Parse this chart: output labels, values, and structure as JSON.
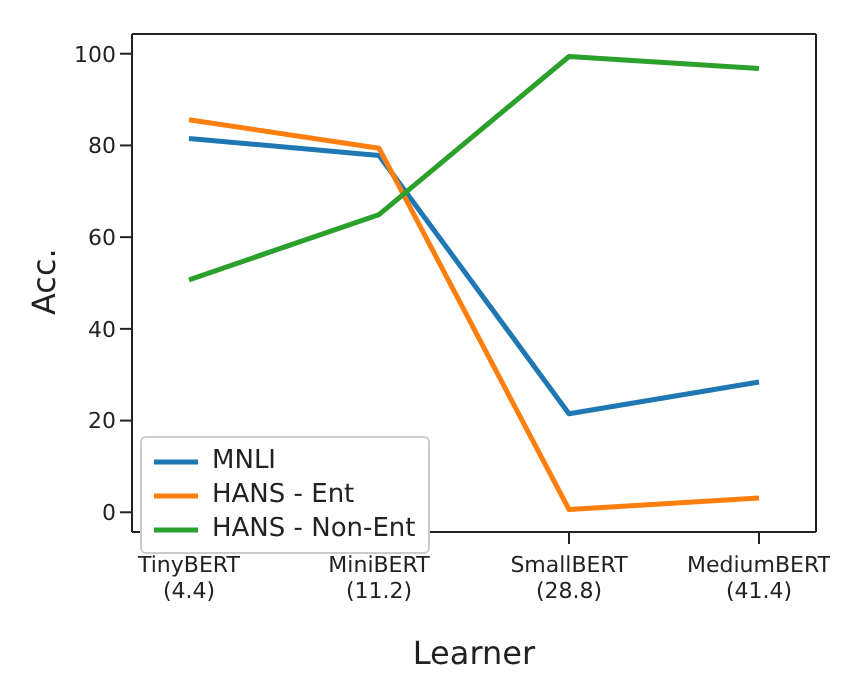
{
  "chart_data": {
    "type": "line",
    "xlabel": "Learner",
    "ylabel": "Acc.",
    "categories": [
      "TinyBERT\n(4.4)",
      "MiniBERT\n(11.2)",
      "SmallBERT\n(28.8)",
      "MediumBERT\n(41.4)"
    ],
    "series": [
      {
        "name": "MNLI",
        "color": "#1f77b4",
        "values": [
          81.5,
          77.8,
          21.5,
          28.4
        ]
      },
      {
        "name": "HANS - Ent",
        "color": "#ff7f0e",
        "values": [
          85.6,
          79.4,
          0.6,
          3.1
        ]
      },
      {
        "name": "HANS - Non-Ent",
        "color": "#2ca02c",
        "values": [
          50.7,
          64.9,
          99.4,
          96.8
        ]
      }
    ],
    "ylim": [
      -4.3,
      104.3
    ],
    "yticks": [
      0,
      20,
      40,
      60,
      80,
      100
    ],
    "grid": false,
    "legend": "bottom left",
    "marker": "none",
    "line_style": "solid"
  }
}
